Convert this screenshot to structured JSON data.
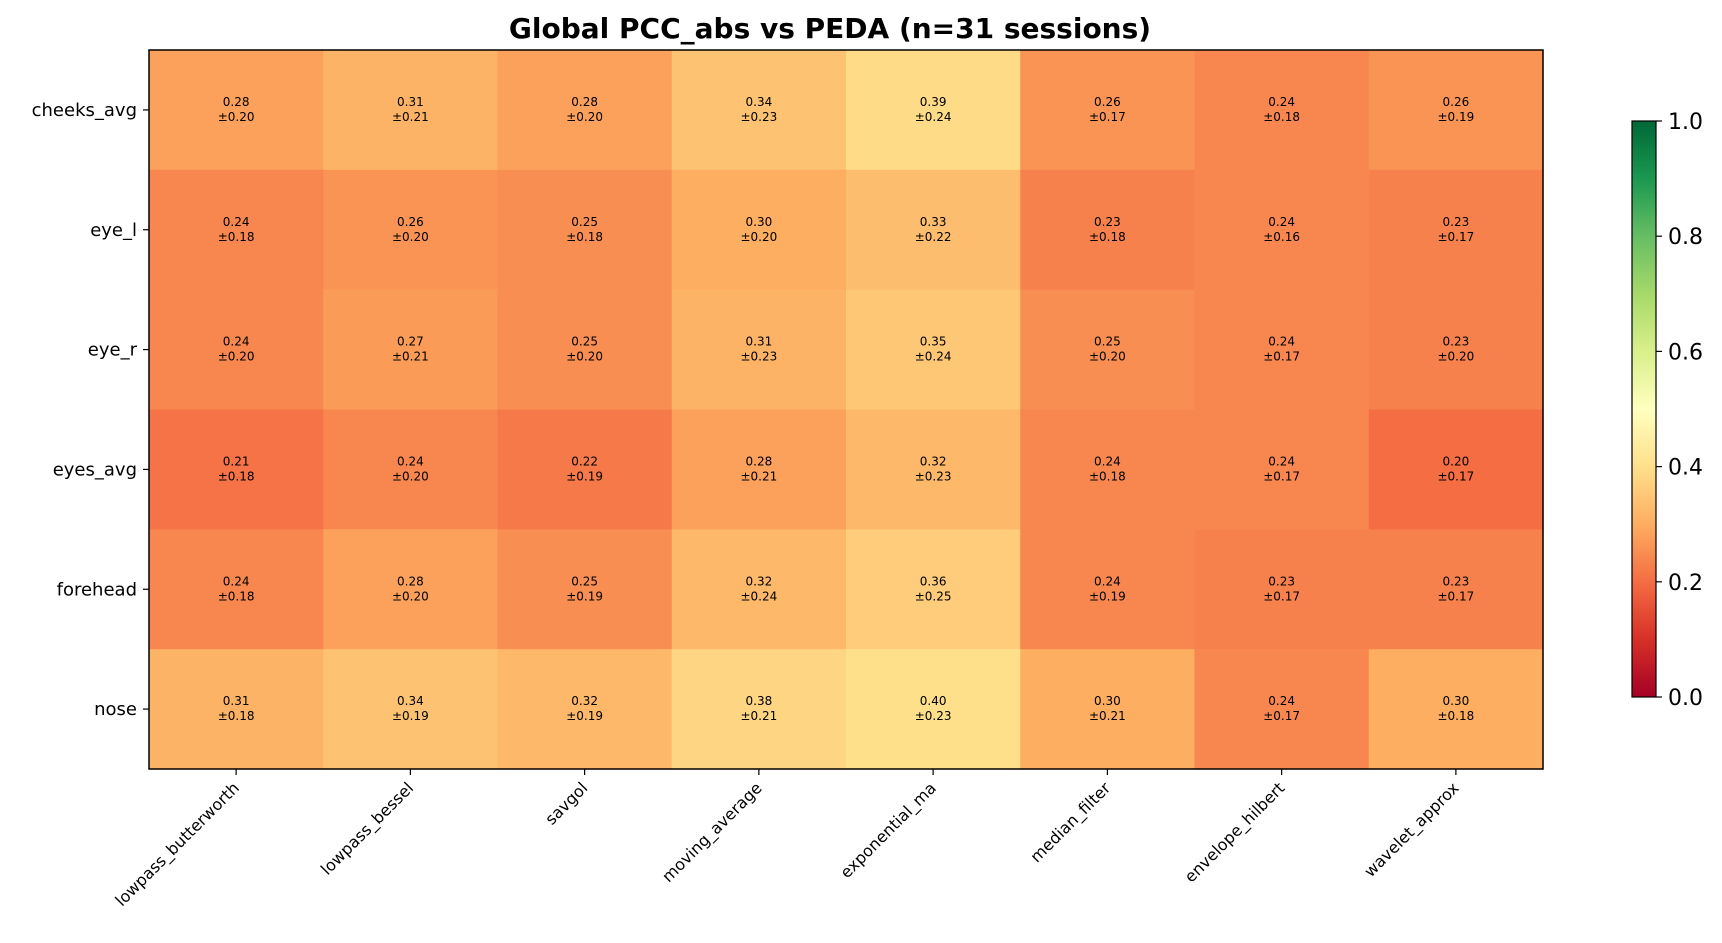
{
  "chart_data": {
    "type": "heatmap",
    "title": "Global PCC_abs vs PEDA (n=31 sessions)",
    "rows": [
      "cheeks_avg",
      "eye_l",
      "eye_r",
      "eyes_avg",
      "forehead",
      "nose"
    ],
    "columns": [
      "lowpass_butterworth",
      "lowpass_bessel",
      "savgol",
      "moving_average",
      "exponential_ma",
      "median_filter",
      "envelope_hilbert",
      "wavelet_approx"
    ],
    "values": [
      [
        0.28,
        0.31,
        0.28,
        0.34,
        0.39,
        0.26,
        0.24,
        0.26
      ],
      [
        0.24,
        0.26,
        0.25,
        0.3,
        0.33,
        0.23,
        0.24,
        0.23
      ],
      [
        0.24,
        0.27,
        0.25,
        0.31,
        0.35,
        0.25,
        0.24,
        0.23
      ],
      [
        0.21,
        0.24,
        0.22,
        0.28,
        0.32,
        0.24,
        0.24,
        0.2
      ],
      [
        0.24,
        0.28,
        0.25,
        0.32,
        0.36,
        0.24,
        0.23,
        0.23
      ],
      [
        0.31,
        0.34,
        0.32,
        0.38,
        0.4,
        0.3,
        0.24,
        0.3
      ]
    ],
    "std": [
      [
        0.2,
        0.21,
        0.2,
        0.23,
        0.24,
        0.17,
        0.18,
        0.19
      ],
      [
        0.18,
        0.2,
        0.18,
        0.2,
        0.22,
        0.18,
        0.16,
        0.17
      ],
      [
        0.2,
        0.21,
        0.2,
        0.23,
        0.24,
        0.2,
        0.17,
        0.2
      ],
      [
        0.18,
        0.2,
        0.19,
        0.21,
        0.23,
        0.18,
        0.17,
        0.17
      ],
      [
        0.18,
        0.2,
        0.19,
        0.24,
        0.25,
        0.19,
        0.17,
        0.17
      ],
      [
        0.18,
        0.19,
        0.19,
        0.21,
        0.23,
        0.21,
        0.17,
        0.18
      ]
    ],
    "colormap": "RdYlGn",
    "vmin": 0.0,
    "vmax": 1.0,
    "colorbar_ticks": [
      "0.0",
      "0.2",
      "0.4",
      "0.6",
      "0.8",
      "1.0"
    ]
  }
}
